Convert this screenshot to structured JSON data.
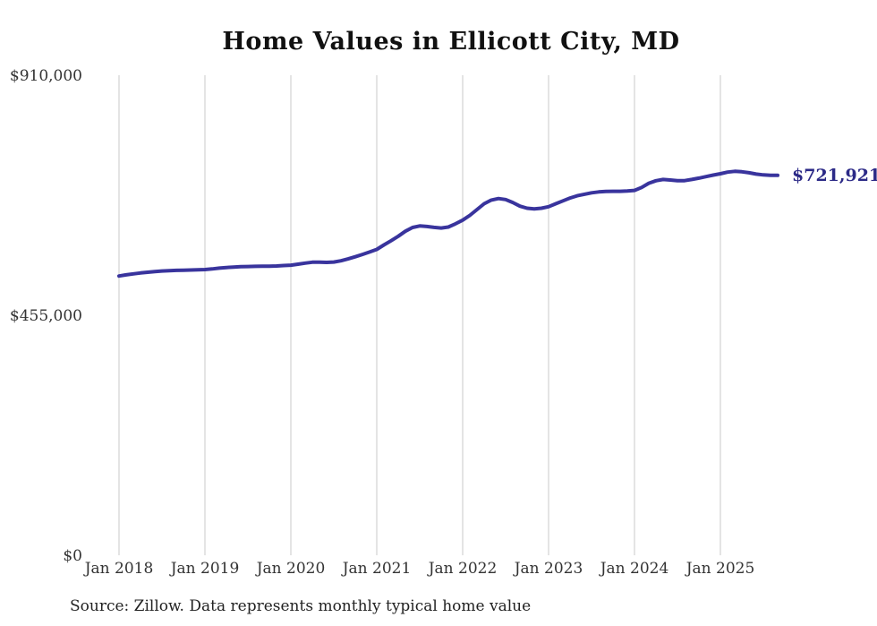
{
  "chart_data": {
    "type": "line",
    "title": "Home Values in Ellicott City, MD",
    "series_name": "Typical home value",
    "source_note": "Source: Zillow. Data represents monthly typical home value",
    "end_value_label": "$721,921",
    "end_value": 721921,
    "line_color": "#39349d",
    "grid_color": "#c9c9c9",
    "grid": "vertical-only",
    "x_axis": {
      "tick_labels": [
        "Jan 2018",
        "Jan 2019",
        "Jan 2020",
        "Jan 2021",
        "Jan 2022",
        "Jan 2023",
        "Jan 2024",
        "Jan 2025"
      ],
      "frequency": "monthly",
      "start": "Jan 2018"
    },
    "y_axis": {
      "ticks": [
        {
          "label": "$910,000",
          "value": 910000
        },
        {
          "label": "$455,000",
          "value": 455000
        },
        {
          "label": "$0",
          "value": 0
        }
      ],
      "range": [
        0,
        910000
      ]
    },
    "values": [
      531000,
      533200,
      535200,
      536800,
      538200,
      539500,
      540500,
      541200,
      541700,
      542100,
      542400,
      542700,
      543200,
      544500,
      546000,
      547200,
      548100,
      548700,
      549100,
      549400,
      549500,
      549600,
      550100,
      550900,
      551600,
      553500,
      555500,
      557200,
      557300,
      556800,
      557500,
      560000,
      563500,
      567500,
      572000,
      576500,
      581500,
      590000,
      598000,
      606500,
      616000,
      623000,
      626000,
      625000,
      623200,
      622000,
      624000,
      630000,
      637000,
      646000,
      657000,
      668000,
      675000,
      678000,
      676000,
      670500,
      663500,
      659500,
      658200,
      659500,
      662500,
      668000,
      673500,
      679000,
      683200,
      686000,
      688700,
      690500,
      691500,
      691600,
      691600,
      692100,
      693300,
      699000,
      707000,
      711700,
      714000,
      713000,
      711800,
      711800,
      714000,
      716700,
      719500,
      722400,
      725000,
      728000,
      729600,
      728600,
      726800,
      724200,
      722800,
      722100,
      721921
    ]
  }
}
